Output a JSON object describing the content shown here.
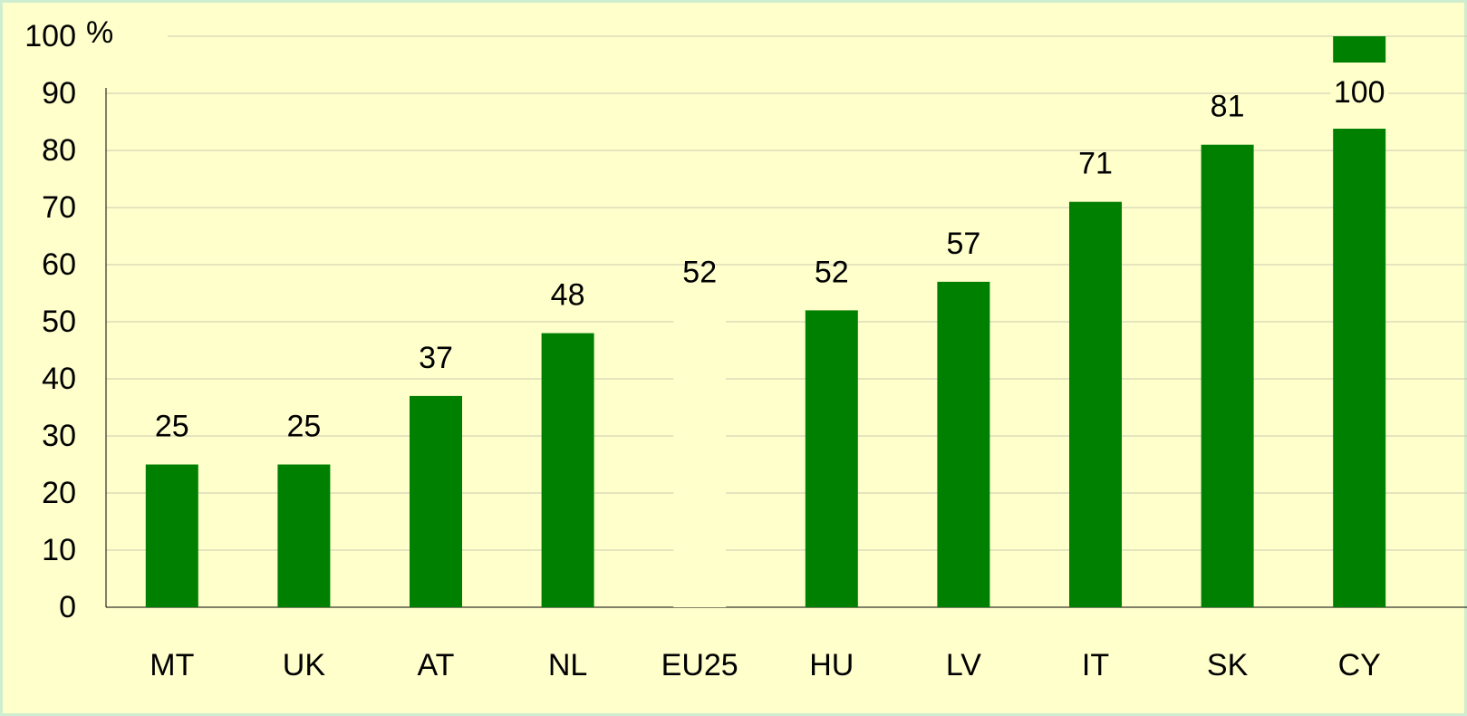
{
  "chart_data": {
    "type": "bar",
    "categories": [
      "MT",
      "UK",
      "AT",
      "NL",
      "EU25",
      "HU",
      "LV",
      "IT",
      "SK",
      "CY"
    ],
    "values": [
      25,
      25,
      37,
      48,
      52,
      52,
      57,
      71,
      81,
      100
    ],
    "colors": [
      "#008000",
      "#008000",
      "#008000",
      "#008000",
      "#ffffcc",
      "#008000",
      "#008000",
      "#008000",
      "#008000",
      "#008000"
    ],
    "ylabel": "%",
    "ylim": [
      0,
      100
    ],
    "yticks": [
      0,
      10,
      20,
      30,
      40,
      50,
      60,
      70,
      80,
      90,
      100
    ],
    "grid": true
  }
}
